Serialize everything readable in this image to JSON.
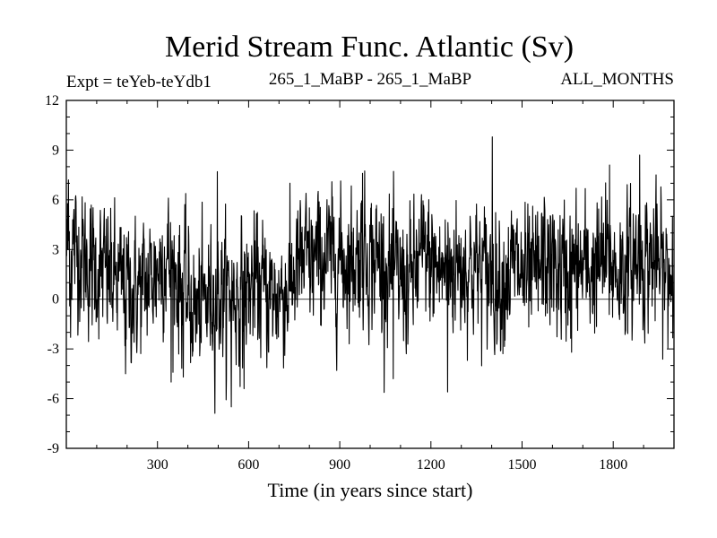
{
  "chart_data": {
    "type": "line",
    "title": "Merid Stream Func. Atlantic (Sv)",
    "subtitle_left": "Expt = teYeb-teYdb1",
    "subtitle_center": "265_1_MaBP - 265_1_MaBP",
    "subtitle_right": "ALL_MONTHS",
    "xlabel": "Time (in years since start)",
    "ylabel": "",
    "xlim": [
      0,
      2000
    ],
    "ylim": [
      -9,
      12
    ],
    "x_ticks": [
      300,
      600,
      900,
      1200,
      1500,
      1800
    ],
    "y_ticks": [
      -9,
      -6,
      -3,
      0,
      3,
      6,
      9,
      12
    ],
    "grid": false,
    "zero_line": true,
    "series": [
      {
        "color": "#000000",
        "x_start": 1,
        "x_step": 1,
        "n_points": 2000,
        "segment_years": 50,
        "segment_means": [
          3.2,
          2.0,
          1.6,
          0.9,
          0.4,
          1.2,
          2.6,
          1.0,
          -0.8,
          0.2,
          0.4,
          0.2,
          1.0,
          0.1,
          0.6,
          2.2,
          2.3,
          2.5,
          2.3,
          2.8,
          2.4,
          1.5,
          0.9,
          2.6,
          1.7,
          2.0,
          2.1,
          1.6,
          1.2,
          2.0,
          0.8,
          2.4,
          1.5,
          1.9,
          1.8,
          2.3,
          1.6,
          2.4,
          2.5,
          1.3
        ],
        "noise_sd": 1.9,
        "extremes": [
          {
            "x": 7,
            "y": 7.2
          },
          {
            "x": 14,
            "y": -2.3
          },
          {
            "x": 195,
            "y": -4.5
          },
          {
            "x": 345,
            "y": -5.0
          },
          {
            "x": 385,
            "y": -4.7
          },
          {
            "x": 497,
            "y": 7.7
          },
          {
            "x": 543,
            "y": -6.5
          },
          {
            "x": 585,
            "y": -5.4
          },
          {
            "x": 975,
            "y": 7.6
          },
          {
            "x": 1076,
            "y": -4.8
          },
          {
            "x": 1255,
            "y": -5.6
          },
          {
            "x": 1402,
            "y": 9.8
          },
          {
            "x": 1663,
            "y": -3.2
          },
          {
            "x": 1788,
            "y": 8.1
          },
          {
            "x": 1887,
            "y": 8.7
          },
          {
            "x": 1995,
            "y": 5.0
          }
        ]
      }
    ]
  }
}
